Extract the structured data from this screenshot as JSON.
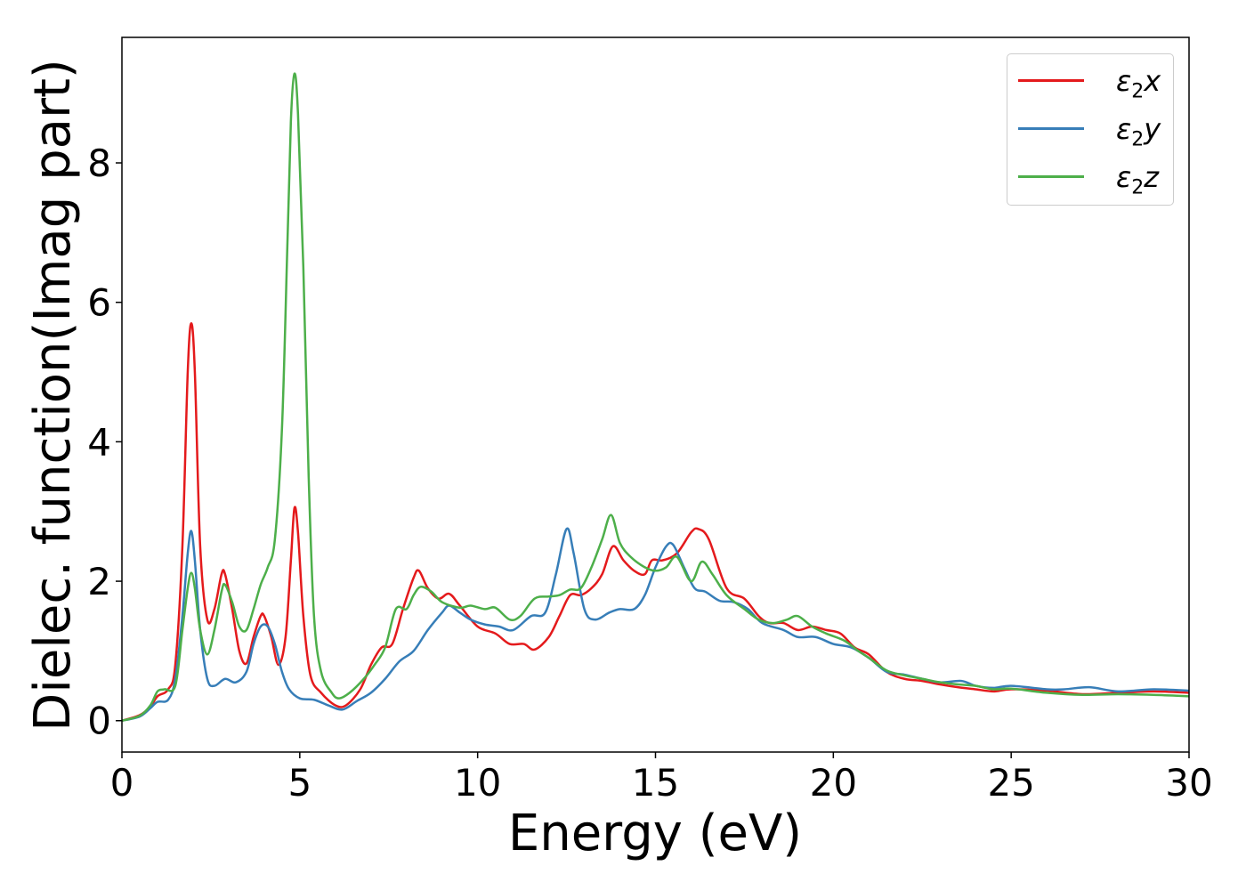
{
  "chart_data": {
    "type": "line",
    "xlabel": "Energy (eV)",
    "ylabel": "Dielec. function(Imag part)",
    "xlim": [
      0,
      30
    ],
    "ylim": [
      -0.45,
      9.8
    ],
    "xticks": [
      0,
      5,
      10,
      15,
      20,
      25,
      30
    ],
    "yticks": [
      0,
      2,
      4,
      6,
      8
    ],
    "grid": false,
    "legend_position": "top-right",
    "series": [
      {
        "name": "ε2x",
        "color": "#e41a1c",
        "points": [
          [
            0,
            0
          ],
          [
            0.5,
            0.08
          ],
          [
            0.8,
            0.2
          ],
          [
            1.0,
            0.35
          ],
          [
            1.3,
            0.45
          ],
          [
            1.5,
            0.8
          ],
          [
            1.7,
            2.5
          ],
          [
            1.85,
            5.0
          ],
          [
            1.95,
            5.7
          ],
          [
            2.05,
            5.0
          ],
          [
            2.2,
            2.5
          ],
          [
            2.4,
            1.45
          ],
          [
            2.6,
            1.6
          ],
          [
            2.8,
            2.1
          ],
          [
            2.9,
            2.1
          ],
          [
            3.1,
            1.6
          ],
          [
            3.3,
            1.0
          ],
          [
            3.5,
            0.82
          ],
          [
            3.7,
            1.2
          ],
          [
            3.9,
            1.5
          ],
          [
            4.0,
            1.5
          ],
          [
            4.2,
            1.2
          ],
          [
            4.4,
            0.8
          ],
          [
            4.6,
            1.2
          ],
          [
            4.75,
            2.3
          ],
          [
            4.85,
            3.05
          ],
          [
            4.95,
            2.7
          ],
          [
            5.1,
            1.5
          ],
          [
            5.3,
            0.65
          ],
          [
            5.6,
            0.4
          ],
          [
            6.0,
            0.22
          ],
          [
            6.3,
            0.22
          ],
          [
            6.7,
            0.45
          ],
          [
            7.0,
            0.8
          ],
          [
            7.3,
            1.05
          ],
          [
            7.6,
            1.1
          ],
          [
            7.9,
            1.6
          ],
          [
            8.2,
            2.05
          ],
          [
            8.35,
            2.15
          ],
          [
            8.6,
            1.9
          ],
          [
            8.9,
            1.75
          ],
          [
            9.2,
            1.82
          ],
          [
            9.5,
            1.65
          ],
          [
            10.0,
            1.35
          ],
          [
            10.5,
            1.25
          ],
          [
            10.9,
            1.1
          ],
          [
            11.3,
            1.1
          ],
          [
            11.6,
            1.02
          ],
          [
            12.0,
            1.2
          ],
          [
            12.3,
            1.5
          ],
          [
            12.6,
            1.8
          ],
          [
            12.9,
            1.8
          ],
          [
            13.2,
            1.9
          ],
          [
            13.5,
            2.1
          ],
          [
            13.8,
            2.5
          ],
          [
            14.1,
            2.3
          ],
          [
            14.4,
            2.15
          ],
          [
            14.7,
            2.1
          ],
          [
            14.9,
            2.3
          ],
          [
            15.2,
            2.3
          ],
          [
            15.6,
            2.4
          ],
          [
            16.0,
            2.7
          ],
          [
            16.2,
            2.75
          ],
          [
            16.5,
            2.6
          ],
          [
            17.0,
            1.9
          ],
          [
            17.5,
            1.75
          ],
          [
            17.9,
            1.5
          ],
          [
            18.2,
            1.4
          ],
          [
            18.6,
            1.4
          ],
          [
            19.0,
            1.3
          ],
          [
            19.4,
            1.35
          ],
          [
            19.8,
            1.3
          ],
          [
            20.2,
            1.25
          ],
          [
            20.6,
            1.05
          ],
          [
            21.0,
            0.95
          ],
          [
            21.5,
            0.7
          ],
          [
            22.0,
            0.6
          ],
          [
            22.5,
            0.57
          ],
          [
            23.0,
            0.52
          ],
          [
            23.5,
            0.48
          ],
          [
            24.0,
            0.45
          ],
          [
            24.5,
            0.42
          ],
          [
            25.0,
            0.45
          ],
          [
            26.0,
            0.43
          ],
          [
            27.0,
            0.38
          ],
          [
            28.0,
            0.4
          ],
          [
            29.0,
            0.42
          ],
          [
            30.0,
            0.4
          ]
        ]
      },
      {
        "name": "ε2y",
        "color": "#377eb8",
        "points": [
          [
            0,
            0
          ],
          [
            0.5,
            0.06
          ],
          [
            0.8,
            0.18
          ],
          [
            1.0,
            0.27
          ],
          [
            1.3,
            0.3
          ],
          [
            1.5,
            0.6
          ],
          [
            1.7,
            1.5
          ],
          [
            1.85,
            2.4
          ],
          [
            1.95,
            2.72
          ],
          [
            2.05,
            2.3
          ],
          [
            2.2,
            1.3
          ],
          [
            2.4,
            0.6
          ],
          [
            2.6,
            0.5
          ],
          [
            2.9,
            0.6
          ],
          [
            3.2,
            0.55
          ],
          [
            3.5,
            0.7
          ],
          [
            3.7,
            1.1
          ],
          [
            3.9,
            1.35
          ],
          [
            4.1,
            1.35
          ],
          [
            4.3,
            1.1
          ],
          [
            4.5,
            0.7
          ],
          [
            4.7,
            0.45
          ],
          [
            5.0,
            0.32
          ],
          [
            5.4,
            0.3
          ],
          [
            5.8,
            0.22
          ],
          [
            6.2,
            0.16
          ],
          [
            6.6,
            0.28
          ],
          [
            7.0,
            0.4
          ],
          [
            7.4,
            0.6
          ],
          [
            7.8,
            0.85
          ],
          [
            8.2,
            1.0
          ],
          [
            8.6,
            1.3
          ],
          [
            9.0,
            1.55
          ],
          [
            9.2,
            1.65
          ],
          [
            9.5,
            1.55
          ],
          [
            9.8,
            1.45
          ],
          [
            10.2,
            1.38
          ],
          [
            10.6,
            1.35
          ],
          [
            11.0,
            1.3
          ],
          [
            11.5,
            1.5
          ],
          [
            11.9,
            1.55
          ],
          [
            12.2,
            2.1
          ],
          [
            12.5,
            2.75
          ],
          [
            12.7,
            2.4
          ],
          [
            13.0,
            1.6
          ],
          [
            13.3,
            1.45
          ],
          [
            13.7,
            1.55
          ],
          [
            14.0,
            1.6
          ],
          [
            14.4,
            1.6
          ],
          [
            14.7,
            1.8
          ],
          [
            15.0,
            2.2
          ],
          [
            15.3,
            2.5
          ],
          [
            15.5,
            2.52
          ],
          [
            15.8,
            2.2
          ],
          [
            16.1,
            1.9
          ],
          [
            16.4,
            1.85
          ],
          [
            16.8,
            1.72
          ],
          [
            17.2,
            1.7
          ],
          [
            17.6,
            1.6
          ],
          [
            18.0,
            1.4
          ],
          [
            18.6,
            1.3
          ],
          [
            19.0,
            1.2
          ],
          [
            19.5,
            1.2
          ],
          [
            20.0,
            1.1
          ],
          [
            20.5,
            1.05
          ],
          [
            21.0,
            0.9
          ],
          [
            21.5,
            0.7
          ],
          [
            22.0,
            0.66
          ],
          [
            22.5,
            0.6
          ],
          [
            23.0,
            0.55
          ],
          [
            23.6,
            0.57
          ],
          [
            24.0,
            0.5
          ],
          [
            24.5,
            0.47
          ],
          [
            25.0,
            0.5
          ],
          [
            26.0,
            0.45
          ],
          [
            26.5,
            0.45
          ],
          [
            27.2,
            0.48
          ],
          [
            28.0,
            0.42
          ],
          [
            29.0,
            0.45
          ],
          [
            30.0,
            0.43
          ]
        ]
      },
      {
        "name": "ε2z",
        "color": "#4daf4a",
        "points": [
          [
            0,
            0
          ],
          [
            0.5,
            0.07
          ],
          [
            0.8,
            0.22
          ],
          [
            1.0,
            0.42
          ],
          [
            1.2,
            0.45
          ],
          [
            1.5,
            0.5
          ],
          [
            1.7,
            1.3
          ],
          [
            1.85,
            1.9
          ],
          [
            1.95,
            2.12
          ],
          [
            2.05,
            1.9
          ],
          [
            2.2,
            1.3
          ],
          [
            2.4,
            0.95
          ],
          [
            2.6,
            1.3
          ],
          [
            2.8,
            1.85
          ],
          [
            2.9,
            1.95
          ],
          [
            3.1,
            1.7
          ],
          [
            3.3,
            1.35
          ],
          [
            3.5,
            1.3
          ],
          [
            3.7,
            1.6
          ],
          [
            3.9,
            1.95
          ],
          [
            4.1,
            2.2
          ],
          [
            4.3,
            2.6
          ],
          [
            4.5,
            4.2
          ],
          [
            4.65,
            6.8
          ],
          [
            4.75,
            8.6
          ],
          [
            4.85,
            9.28
          ],
          [
            4.95,
            8.7
          ],
          [
            5.1,
            6.5
          ],
          [
            5.25,
            3.5
          ],
          [
            5.4,
            1.5
          ],
          [
            5.6,
            0.7
          ],
          [
            5.9,
            0.4
          ],
          [
            6.1,
            0.32
          ],
          [
            6.4,
            0.4
          ],
          [
            6.8,
            0.6
          ],
          [
            7.1,
            0.8
          ],
          [
            7.4,
            1.05
          ],
          [
            7.7,
            1.6
          ],
          [
            8.0,
            1.6
          ],
          [
            8.2,
            1.8
          ],
          [
            8.4,
            1.92
          ],
          [
            8.7,
            1.85
          ],
          [
            9.0,
            1.7
          ],
          [
            9.5,
            1.62
          ],
          [
            9.8,
            1.65
          ],
          [
            10.2,
            1.6
          ],
          [
            10.5,
            1.62
          ],
          [
            10.9,
            1.45
          ],
          [
            11.2,
            1.5
          ],
          [
            11.6,
            1.75
          ],
          [
            12.0,
            1.78
          ],
          [
            12.3,
            1.8
          ],
          [
            12.6,
            1.88
          ],
          [
            12.9,
            1.9
          ],
          [
            13.2,
            2.2
          ],
          [
            13.5,
            2.6
          ],
          [
            13.75,
            2.95
          ],
          [
            14.0,
            2.55
          ],
          [
            14.3,
            2.35
          ],
          [
            14.7,
            2.2
          ],
          [
            15.0,
            2.15
          ],
          [
            15.3,
            2.2
          ],
          [
            15.6,
            2.35
          ],
          [
            16.0,
            2.0
          ],
          [
            16.3,
            2.28
          ],
          [
            16.6,
            2.1
          ],
          [
            17.0,
            1.8
          ],
          [
            17.5,
            1.6
          ],
          [
            17.9,
            1.45
          ],
          [
            18.3,
            1.4
          ],
          [
            18.7,
            1.45
          ],
          [
            19.0,
            1.5
          ],
          [
            19.4,
            1.35
          ],
          [
            19.8,
            1.25
          ],
          [
            20.3,
            1.15
          ],
          [
            20.7,
            1.0
          ],
          [
            21.0,
            0.9
          ],
          [
            21.5,
            0.72
          ],
          [
            22.0,
            0.65
          ],
          [
            22.5,
            0.6
          ],
          [
            23.0,
            0.55
          ],
          [
            23.5,
            0.52
          ],
          [
            24.0,
            0.5
          ],
          [
            24.5,
            0.45
          ],
          [
            25.0,
            0.46
          ],
          [
            26.0,
            0.4
          ],
          [
            27.0,
            0.37
          ],
          [
            28.0,
            0.38
          ],
          [
            29.0,
            0.37
          ],
          [
            30.0,
            0.35
          ]
        ]
      }
    ]
  }
}
